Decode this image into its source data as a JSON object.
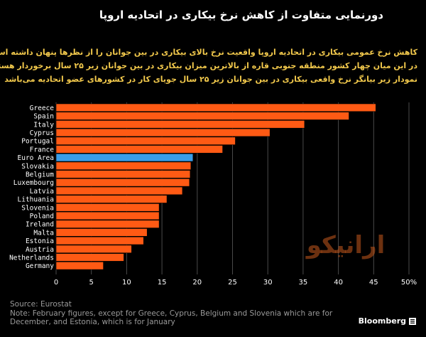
{
  "header": {
    "title": "دورنمایی متفاوت از کاهش نرخ بیکاری در اتحادیه اروپا"
  },
  "description": {
    "lines": [
      "کاهش نرخ عمومی بیکاری در اتحادیه اروپا واقعیت نرخ بالای بیکاری در بین جوانان  را از نظرها پنهان داشته است.",
      "در این میان چهار کشور منطقه جنوبی قاره از بالاترین میزان بیکاری در بین جوانان زیر ۲۵ سال برخوردار هستند.",
      "نمودار زیر بیانگر نرخ واقعی بیکاری در بین جوانان زیر ۲۵ سال جویای کار در کشورهای عضو اتحادیه می‌باشد"
    ]
  },
  "colors": {
    "background": "#000000",
    "bar": "#ff5a14",
    "highlight_bar": "#3a9ee8",
    "bar_stroke": "#000000",
    "grid": "#4a4a4a",
    "tick_text": "#ffffff",
    "description_text": "#f2c94c",
    "footer_text": "#9a9a9a",
    "watermark": "#c65a1e"
  },
  "chart_data": {
    "type": "bar",
    "orientation": "horizontal",
    "categories": [
      "Greece",
      "Spain",
      "Italy",
      "Cyprus",
      "Portugal",
      "France",
      "Euro Area",
      "Slovakia",
      "Belgium",
      "Luxembourg",
      "Latvia",
      "Lithuania",
      "Slovenia",
      "Poland",
      "Ireland",
      "Malta",
      "Estonia",
      "Austria",
      "Netherlands",
      "Germany"
    ],
    "values": [
      45.3,
      41.5,
      35.2,
      30.3,
      25.4,
      23.6,
      19.4,
      19.1,
      19.0,
      18.9,
      17.9,
      15.7,
      14.6,
      14.6,
      14.6,
      12.9,
      12.4,
      10.7,
      9.6,
      6.7
    ],
    "highlight": "Euro Area",
    "xlim": [
      0,
      50
    ],
    "xticks": [
      0,
      5,
      10,
      15,
      20,
      25,
      30,
      35,
      40,
      45,
      50
    ],
    "xtick_suffix_last": "%",
    "grid": true,
    "title": "",
    "xlabel": "",
    "ylabel": ""
  },
  "footer": {
    "source": "Source: Eurostat",
    "note_lines": [
      "Note: February figures, except for Greece, Cyprus, Belgium and Slovenia which are for",
      "December, and Estonia, which is for January"
    ],
    "brand": "Bloomberg"
  },
  "watermark": {
    "text": "ارانیکو"
  }
}
